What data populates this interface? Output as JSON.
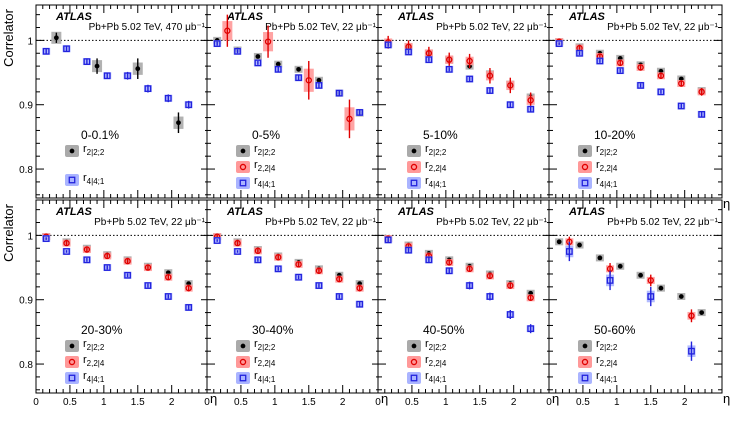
{
  "figure": {
    "experiment": "ATLAS",
    "y_axis_label": "Correlator",
    "x_axis_label": "η",
    "x_ticks": [
      0,
      0.5,
      1,
      1.5,
      2
    ],
    "y_ticks": [
      0.8,
      0.9,
      1
    ],
    "y_tick_labels": [
      "0.8",
      "0.9",
      "1"
    ],
    "x_tick_labels": [
      "0",
      "0.5",
      "1",
      "1.5",
      "2"
    ]
  },
  "colors": {
    "r_2_2_2": "#000000",
    "r_2_2_4": "#e00000",
    "r_4_4_1": "#2222dd",
    "r_2_2_2_band": "#aaaaaa",
    "r_2_2_4_band": "#ff9999",
    "r_4_4_1_band": "#aab4ff"
  },
  "chart_data": [
    {
      "type": "scatter",
      "panel": "0-0.1%",
      "centrality": "0-0.1%",
      "info": "Pb+Pb 5.02 TeV, 470 μb⁻¹",
      "xlim": [
        0,
        2.55
      ],
      "ylim": [
        0.755,
        1.055
      ],
      "legend": [
        "r2|2;2",
        "r4|4;1"
      ],
      "series": [
        {
          "name": "r2|2;2",
          "key": "r_2_2_2",
          "x": [
            0.3,
            0.9,
            1.5,
            2.1
          ],
          "y": [
            1.004,
            0.96,
            0.956,
            0.872
          ],
          "err": [
            0.008,
            0.012,
            0.016,
            0.016
          ]
        },
        {
          "name": "r4|4;1",
          "key": "r_4_4_1",
          "x": [
            0.15,
            0.45,
            0.75,
            1.05,
            1.35,
            1.65,
            1.95,
            2.25
          ],
          "y": [
            0.983,
            0.987,
            0.967,
            0.945,
            0.945,
            0.925,
            0.91,
            0.9
          ],
          "err": [
            0.004,
            0.004,
            0.005,
            0.005,
            0.006,
            0.006,
            0.006,
            0.006
          ]
        }
      ]
    },
    {
      "type": "scatter",
      "panel": "0-5%",
      "centrality": "0-5%",
      "info": "Pb+Pb 5.02 TeV, 22 μb⁻¹",
      "xlim": [
        0,
        2.55
      ],
      "ylim": [
        0.755,
        1.055
      ],
      "legend": [
        "r2|2;2",
        "r2,2|4",
        "r4|4;1"
      ],
      "series": [
        {
          "name": "r2|2;2",
          "key": "r_2_2_2",
          "x": [
            0.15,
            0.45,
            0.75,
            1.05,
            1.35,
            1.65,
            1.95,
            2.25
          ],
          "y": [
            1.0,
            0.985,
            0.975,
            0.963,
            0.955,
            0.938,
            0.918,
            0.887
          ],
          "err": [
            0.002,
            0.002,
            0.002,
            0.003,
            0.003,
            0.003,
            0.004,
            0.004
          ]
        },
        {
          "name": "r2,2|4",
          "key": "r_2_2_4",
          "x": [
            0.3,
            0.9,
            1.5,
            2.1
          ],
          "y": [
            1.015,
            0.998,
            0.938,
            0.878
          ],
          "err": [
            0.025,
            0.025,
            0.03,
            0.03
          ]
        },
        {
          "name": "r4|4;1",
          "key": "r_4_4_1",
          "x": [
            0.15,
            0.45,
            0.75,
            1.05,
            1.35,
            1.65,
            1.95,
            2.25
          ],
          "y": [
            0.995,
            0.983,
            0.965,
            0.955,
            0.942,
            0.93,
            0.918,
            0.888
          ],
          "err": [
            0.003,
            0.003,
            0.003,
            0.004,
            0.004,
            0.004,
            0.005,
            0.005
          ]
        }
      ]
    },
    {
      "type": "scatter",
      "panel": "5-10%",
      "centrality": "5-10%",
      "info": "Pb+Pb 5.02 TeV, 22 μb⁻¹",
      "xlim": [
        0,
        2.55
      ],
      "ylim": [
        0.755,
        1.055
      ],
      "legend": [
        "r2|2;2",
        "r2,2|4",
        "r4|4;1"
      ],
      "series": [
        {
          "name": "r2|2;2",
          "key": "r_2_2_2",
          "x": [
            0.15,
            0.45,
            0.75,
            1.05,
            1.35,
            1.65,
            1.95,
            2.25
          ],
          "y": [
            0.995,
            0.99,
            0.98,
            0.97,
            0.96,
            0.948,
            0.932,
            0.912
          ],
          "err": [
            0.003,
            0.003,
            0.003,
            0.003,
            0.004,
            0.004,
            0.005,
            0.005
          ]
        },
        {
          "name": "r2,2|4",
          "key": "r_2_2_4",
          "x": [
            0.15,
            0.45,
            0.75,
            1.05,
            1.35,
            1.65,
            1.95,
            2.25
          ],
          "y": [
            0.997,
            0.99,
            0.98,
            0.97,
            0.968,
            0.945,
            0.93,
            0.907
          ],
          "err": [
            0.01,
            0.01,
            0.01,
            0.011,
            0.011,
            0.012,
            0.012,
            0.012
          ]
        },
        {
          "name": "r4|4;1",
          "key": "r_4_4_1",
          "x": [
            0.15,
            0.45,
            0.75,
            1.05,
            1.35,
            1.65,
            1.95,
            2.25
          ],
          "y": [
            0.993,
            0.982,
            0.97,
            0.955,
            0.94,
            0.922,
            0.9,
            0.893
          ],
          "err": [
            0.003,
            0.003,
            0.003,
            0.003,
            0.004,
            0.004,
            0.004,
            0.005
          ]
        }
      ]
    },
    {
      "type": "scatter",
      "panel": "10-20%",
      "centrality": "10-20%",
      "info": "Pb+Pb 5.02 TeV, 22 μb⁻¹",
      "xlim": [
        0,
        2.55
      ],
      "ylim": [
        0.755,
        1.055
      ],
      "legend": [
        "r2|2;2",
        "r2,2|4",
        "r4|4;1"
      ],
      "series": [
        {
          "name": "r2|2;2",
          "key": "r_2_2_2",
          "x": [
            0.15,
            0.45,
            0.75,
            1.05,
            1.35,
            1.65,
            1.95,
            2.25
          ],
          "y": [
            0.998,
            0.99,
            0.98,
            0.972,
            0.962,
            0.952,
            0.94,
            0.922
          ],
          "err": [
            0.002,
            0.002,
            0.002,
            0.002,
            0.002,
            0.003,
            0.003,
            0.003
          ]
        },
        {
          "name": "r2,2|4",
          "key": "r_2_2_4",
          "x": [
            0.15,
            0.45,
            0.75,
            1.05,
            1.35,
            1.65,
            1.95,
            2.25
          ],
          "y": [
            0.998,
            0.988,
            0.975,
            0.965,
            0.958,
            0.945,
            0.933,
            0.92
          ],
          "err": [
            0.004,
            0.004,
            0.004,
            0.004,
            0.005,
            0.005,
            0.005,
            0.006
          ]
        },
        {
          "name": "r4|4;1",
          "key": "r_4_4_1",
          "x": [
            0.15,
            0.45,
            0.75,
            1.05,
            1.35,
            1.65,
            1.95,
            2.25
          ],
          "y": [
            0.995,
            0.98,
            0.968,
            0.953,
            0.93,
            0.92,
            0.898,
            0.885
          ],
          "err": [
            0.002,
            0.003,
            0.003,
            0.003,
            0.003,
            0.003,
            0.004,
            0.004
          ]
        }
      ]
    },
    {
      "type": "scatter",
      "panel": "20-30%",
      "centrality": "20-30%",
      "info": "Pb+Pb 5.02 TeV, 22 μb⁻¹",
      "xlim": [
        0,
        2.55
      ],
      "ylim": [
        0.755,
        1.055
      ],
      "legend": [
        "r2|2;2",
        "r2,2|4",
        "r4|4;1"
      ],
      "series": [
        {
          "name": "r2|2;2",
          "key": "r_2_2_2",
          "x": [
            0.15,
            0.45,
            0.75,
            1.05,
            1.35,
            1.65,
            1.95,
            2.25
          ],
          "y": [
            0.998,
            0.99,
            0.98,
            0.97,
            0.962,
            0.952,
            0.942,
            0.925
          ],
          "err": [
            0.002,
            0.002,
            0.002,
            0.002,
            0.002,
            0.003,
            0.003,
            0.003
          ]
        },
        {
          "name": "r2,2|4",
          "key": "r_2_2_4",
          "x": [
            0.15,
            0.45,
            0.75,
            1.05,
            1.35,
            1.65,
            1.95,
            2.25
          ],
          "y": [
            0.998,
            0.988,
            0.978,
            0.968,
            0.96,
            0.95,
            0.935,
            0.918
          ],
          "err": [
            0.003,
            0.003,
            0.003,
            0.003,
            0.004,
            0.004,
            0.004,
            0.005
          ]
        },
        {
          "name": "r4|4;1",
          "key": "r_4_4_1",
          "x": [
            0.15,
            0.45,
            0.75,
            1.05,
            1.35,
            1.65,
            1.95,
            2.25
          ],
          "y": [
            0.995,
            0.975,
            0.962,
            0.95,
            0.938,
            0.922,
            0.905,
            0.888
          ],
          "err": [
            0.002,
            0.002,
            0.003,
            0.003,
            0.003,
            0.003,
            0.003,
            0.004
          ]
        }
      ]
    },
    {
      "type": "scatter",
      "panel": "30-40%",
      "centrality": "30-40%",
      "info": "Pb+Pb 5.02 TeV, 22 μb⁻¹",
      "xlim": [
        0,
        2.55
      ],
      "ylim": [
        0.755,
        1.055
      ],
      "legend": [
        "r2|2;2",
        "r2,2|4",
        "r4|4;1"
      ],
      "series": [
        {
          "name": "r2|2;2",
          "key": "r_2_2_2",
          "x": [
            0.15,
            0.45,
            0.75,
            1.05,
            1.35,
            1.65,
            1.95,
            2.25
          ],
          "y": [
            0.998,
            0.99,
            0.978,
            0.968,
            0.958,
            0.948,
            0.938,
            0.925
          ],
          "err": [
            0.002,
            0.002,
            0.002,
            0.002,
            0.002,
            0.003,
            0.003,
            0.003
          ]
        },
        {
          "name": "r2,2|4",
          "key": "r_2_2_4",
          "x": [
            0.15,
            0.45,
            0.75,
            1.05,
            1.35,
            1.65,
            1.95,
            2.25
          ],
          "y": [
            0.998,
            0.988,
            0.976,
            0.966,
            0.955,
            0.945,
            0.932,
            0.918
          ],
          "err": [
            0.003,
            0.003,
            0.003,
            0.003,
            0.004,
            0.004,
            0.004,
            0.005
          ]
        },
        {
          "name": "r4|4;1",
          "key": "r_4_4_1",
          "x": [
            0.15,
            0.45,
            0.75,
            1.05,
            1.35,
            1.65,
            1.95,
            2.25
          ],
          "y": [
            0.992,
            0.975,
            0.962,
            0.948,
            0.935,
            0.922,
            0.905,
            0.893
          ],
          "err": [
            0.002,
            0.002,
            0.003,
            0.003,
            0.003,
            0.003,
            0.003,
            0.004
          ]
        }
      ]
    },
    {
      "type": "scatter",
      "panel": "40-50%",
      "centrality": "40-50%",
      "info": "Pb+Pb 5.02 TeV, 22 μb⁻¹",
      "xlim": [
        0,
        2.55
      ],
      "ylim": [
        0.755,
        1.055
      ],
      "legend": [
        "r2|2;2",
        "r2,2|4",
        "r4|4;1"
      ],
      "series": [
        {
          "name": "r2|2;2",
          "key": "r_2_2_2",
          "x": [
            0.15,
            0.45,
            0.75,
            1.05,
            1.35,
            1.65,
            1.95,
            2.25
          ],
          "y": [
            0.995,
            0.985,
            0.972,
            0.962,
            0.952,
            0.94,
            0.925,
            0.91
          ],
          "err": [
            0.002,
            0.002,
            0.002,
            0.002,
            0.003,
            0.003,
            0.003,
            0.003
          ]
        },
        {
          "name": "r2,2|4",
          "key": "r_2_2_4",
          "x": [
            0.15,
            0.45,
            0.75,
            1.05,
            1.35,
            1.65,
            1.95,
            2.25
          ],
          "y": [
            0.995,
            0.983,
            0.968,
            0.958,
            0.948,
            0.937,
            0.922,
            0.903
          ],
          "err": [
            0.003,
            0.003,
            0.003,
            0.004,
            0.004,
            0.004,
            0.005,
            0.005
          ]
        },
        {
          "name": "r4|4;1",
          "key": "r_4_4_1",
          "x": [
            0.15,
            0.45,
            0.75,
            1.05,
            1.35,
            1.65,
            1.95,
            2.25
          ],
          "y": [
            0.993,
            0.977,
            0.962,
            0.945,
            0.922,
            0.905,
            0.877,
            0.855
          ],
          "err": [
            0.004,
            0.004,
            0.005,
            0.005,
            0.006,
            0.006,
            0.007,
            0.007
          ]
        }
      ]
    },
    {
      "type": "scatter",
      "panel": "50-60%",
      "centrality": "50-60%",
      "info": "Pb+Pb 5.02 TeV, 22 μb⁻¹",
      "xlim": [
        0,
        2.55
      ],
      "ylim": [
        0.755,
        1.055
      ],
      "legend": [
        "r2|2;2",
        "r2,2|4",
        "r4|4;1"
      ],
      "series": [
        {
          "name": "r2|2;2",
          "key": "r_2_2_2",
          "x": [
            0.15,
            0.45,
            0.75,
            1.05,
            1.35,
            1.65,
            1.95,
            2.25
          ],
          "y": [
            0.99,
            0.985,
            0.965,
            0.952,
            0.938,
            0.918,
            0.905,
            0.88
          ],
          "err": [
            0.002,
            0.002,
            0.002,
            0.002,
            0.003,
            0.003,
            0.003,
            0.003
          ]
        },
        {
          "name": "r2,2|4",
          "key": "r_2_2_4",
          "x": [
            0.3,
            0.9,
            1.5,
            2.1
          ],
          "y": [
            0.99,
            0.948,
            0.93,
            0.875
          ],
          "err": [
            0.008,
            0.009,
            0.009,
            0.01
          ]
        },
        {
          "name": "r4|4;1",
          "key": "r_4_4_1",
          "x": [
            0.3,
            0.9,
            1.5,
            2.1
          ],
          "y": [
            0.975,
            0.93,
            0.905,
            0.82
          ],
          "err": [
            0.015,
            0.015,
            0.015,
            0.015
          ]
        }
      ]
    }
  ]
}
